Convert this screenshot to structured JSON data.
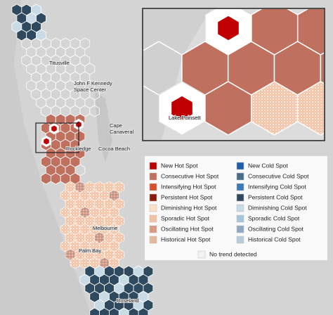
{
  "map": {
    "places": [
      {
        "lines": [
          "Titusville"
        ]
      },
      {
        "lines": [
          "John F Kennedy",
          "Space Center"
        ]
      },
      {
        "lines": [
          "Cape",
          "Canaveral"
        ]
      },
      {
        "lines": [
          "Rockledge"
        ]
      },
      {
        "lines": [
          "Cocoa Beach"
        ]
      },
      {
        "lines": [
          "Melbourne"
        ]
      },
      {
        "lines": [
          "Palm Bay"
        ]
      },
      {
        "lines": [
          "Roseland"
        ]
      }
    ],
    "inset_label": "Lake Poinsett"
  },
  "legend": {
    "hot": [
      {
        "label": "New Hot Spot",
        "color": "#c00000"
      },
      {
        "label": "Consecutive Hot Spot",
        "color": "#c0705f"
      },
      {
        "label": "Intensifying Hot Spot",
        "color": "#d9502a"
      },
      {
        "label": "Persistent Hot Spot",
        "color": "#8b1a0a"
      },
      {
        "label": "Diminishing Hot Spot",
        "color": "#fbe0c8"
      },
      {
        "label": "Sporadic Hot Spot",
        "color": "#f3c2a4"
      },
      {
        "label": "Oscillating Hot Spot",
        "color": "#d99a82"
      },
      {
        "label": "Historical Hot Spot",
        "color": "#e8b89c"
      }
    ],
    "cold": [
      {
        "label": "New Cold Spot",
        "color": "#1f5fa8"
      },
      {
        "label": "Consecutive Cold Spot",
        "color": "#4a6d8c"
      },
      {
        "label": "Intensifying Cold Spot",
        "color": "#3a7ab8"
      },
      {
        "label": "Persistent Cold Spot",
        "color": "#2f4a5f"
      },
      {
        "label": "Diminishing Cold Spot",
        "color": "#c9dbe6"
      },
      {
        "label": "Sporadic Cold Spot",
        "color": "#a8c4d8"
      },
      {
        "label": "Oscillating Cold Spot",
        "color": "#8fa9c4"
      },
      {
        "label": "Historical Cold Spot",
        "color": "#b7cbd8"
      }
    ],
    "none": {
      "label": "No trend detected",
      "color": "#f2f2f2"
    }
  }
}
